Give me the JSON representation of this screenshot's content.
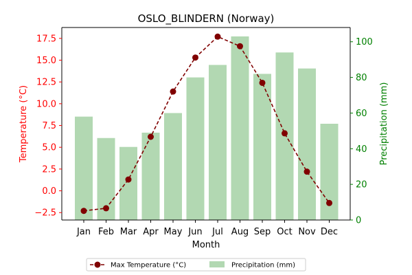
{
  "chart_data": {
    "type": "bar+line",
    "title": "OSLO_BLINDERN (Norway)",
    "xlabel": "Month",
    "ylabel_left": "Temperature (°C)",
    "ylabel_right": "Precipitation (mm)",
    "categories": [
      "Jan",
      "Feb",
      "Mar",
      "Apr",
      "May",
      "Jun",
      "Jul",
      "Aug",
      "Sep",
      "Oct",
      "Nov",
      "Dec"
    ],
    "y_left_ticks": [
      "−2.5",
      "0.0",
      "2.5",
      "5.0",
      "7.5",
      "10.0",
      "12.5",
      "15.0",
      "17.5"
    ],
    "y_left_tick_values": [
      -2.5,
      0,
      2.5,
      5,
      7.5,
      10,
      12.5,
      15,
      17.5
    ],
    "y_right_ticks": [
      "0",
      "20",
      "40",
      "60",
      "80",
      "100"
    ],
    "y_right_tick_values": [
      0,
      20,
      40,
      60,
      80,
      100
    ],
    "ylim_left": [
      -3.35,
      18.75
    ],
    "ylim_right": [
      0,
      108
    ],
    "series": [
      {
        "name": "Max Temperature (°C)",
        "type": "line",
        "axis": "left",
        "values": [
          -2.3,
          -2.0,
          1.3,
          6.2,
          11.4,
          15.3,
          17.7,
          16.6,
          12.4,
          6.6,
          2.2,
          -1.4
        ]
      },
      {
        "name": "Precipitation (mm)",
        "type": "bar",
        "axis": "right",
        "values": [
          58,
          46,
          41,
          49,
          60,
          80,
          87,
          103,
          82,
          94,
          85,
          54
        ]
      }
    ],
    "grid": false,
    "legend_position": "bottom-center",
    "colors": {
      "line": "#800000",
      "bar": "#b2d8b2",
      "left_axis": "#ff0000",
      "right_axis": "#008000"
    }
  }
}
